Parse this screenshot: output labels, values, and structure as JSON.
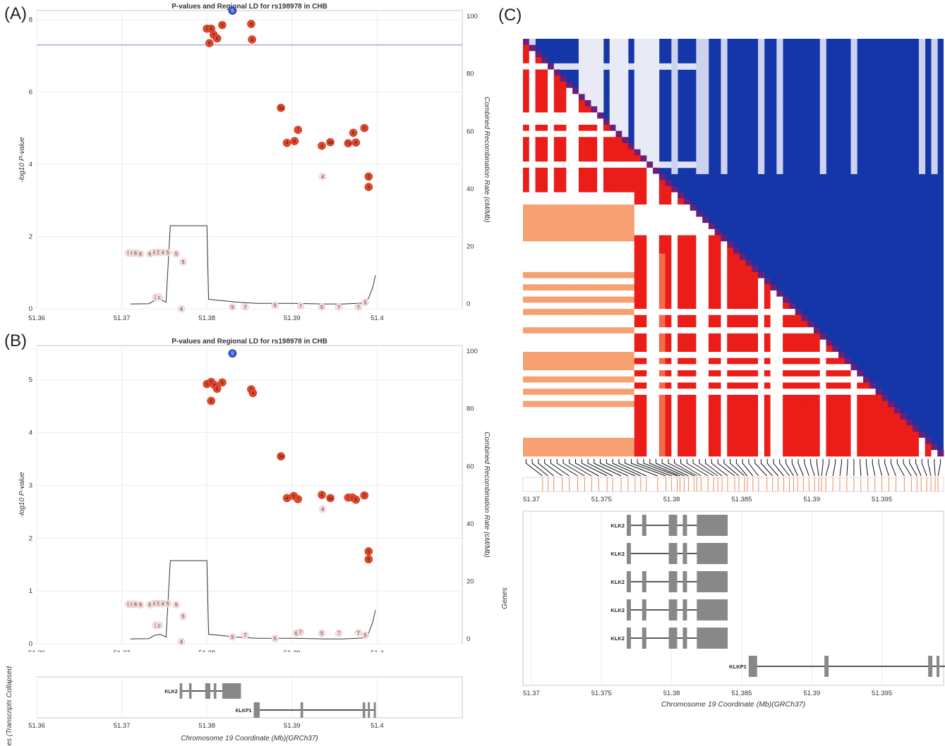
{
  "panel_letters": {
    "a": "(A)",
    "b": "(B)",
    "c": "(C)"
  },
  "chart_data": [
    {
      "panel": "(A)",
      "type": "scatter",
      "title": "P-values and Regional LD for rs198978 in CHB",
      "ylabel": "-log10 P-value",
      "y2label": "Combined Recombination Rate (cM/Mb)",
      "xlim": [
        51.36,
        51.41
      ],
      "ylim": [
        0,
        8.25
      ],
      "y2lim": [
        -1.7,
        102
      ],
      "xticks": [
        "51.36",
        "51.37",
        "51.38",
        "51.39",
        "51.4"
      ],
      "yticks": [
        "0",
        "2",
        "4",
        "6",
        "8"
      ],
      "y2ticks": [
        "0",
        "20",
        "40",
        "60",
        "80",
        "100"
      ],
      "threshold": 7.3,
      "lead": {
        "x": 51.383,
        "y": 8.25,
        "label": "5"
      },
      "red_points": [
        {
          "x": 51.38,
          "y": 7.75,
          "label": "5"
        },
        {
          "x": 51.3805,
          "y": 7.75,
          "label": "6"
        },
        {
          "x": 51.3818,
          "y": 7.85,
          "label": "5"
        },
        {
          "x": 51.3808,
          "y": 7.58,
          "label": "5"
        },
        {
          "x": 51.3812,
          "y": 7.48,
          "label": "6"
        },
        {
          "x": 51.3803,
          "y": 7.35,
          "label": "6"
        },
        {
          "x": 51.3852,
          "y": 7.88,
          "label": "6"
        },
        {
          "x": 51.3853,
          "y": 7.45,
          "label": "4"
        },
        {
          "x": 51.3887,
          "y": 5.56,
          "label": "3a"
        },
        {
          "x": 51.3907,
          "y": 4.95,
          "label": "7"
        },
        {
          "x": 51.3894,
          "y": 4.59,
          "label": "4"
        },
        {
          "x": 51.3903,
          "y": 4.64,
          "label": "6"
        },
        {
          "x": 51.3935,
          "y": 4.51,
          "label": "4"
        },
        {
          "x": 51.3945,
          "y": 4.61,
          "label": "3a"
        },
        {
          "x": 51.3966,
          "y": 4.58,
          "label": "7a"
        },
        {
          "x": 51.3972,
          "y": 4.87,
          "label": "6"
        },
        {
          "x": 51.3975,
          "y": 4.6,
          "label": "6"
        },
        {
          "x": 51.3985,
          "y": 5.0,
          "label": "5"
        },
        {
          "x": 51.399,
          "y": 3.66,
          "label": "5"
        },
        {
          "x": 51.399,
          "y": 3.37,
          "label": "6"
        }
      ],
      "light_points": [
        {
          "x": 51.3708,
          "y": 1.54,
          "label": "5"
        },
        {
          "x": 51.3712,
          "y": 1.54,
          "label": "6"
        },
        {
          "x": 51.3716,
          "y": 1.54,
          "label": "6"
        },
        {
          "x": 51.3722,
          "y": 1.52,
          "label": "6"
        },
        {
          "x": 51.3733,
          "y": 1.52,
          "label": "6"
        },
        {
          "x": 51.3738,
          "y": 1.56,
          "label": "4"
        },
        {
          "x": 51.3743,
          "y": 1.56,
          "label": "5"
        },
        {
          "x": 51.3748,
          "y": 1.56,
          "label": "4"
        },
        {
          "x": 51.3754,
          "y": 1.56,
          "label": "5"
        },
        {
          "x": 51.3764,
          "y": 1.52,
          "label": "5"
        },
        {
          "x": 51.3772,
          "y": 1.3,
          "label": "5"
        },
        {
          "x": 51.3936,
          "y": 3.66,
          "label": "4"
        },
        {
          "x": 51.374,
          "y": 0.32,
          "label": "2"
        },
        {
          "x": 51.3744,
          "y": 0.32,
          "label": "c"
        },
        {
          "x": 51.377,
          "y": 0.0,
          "label": "4"
        },
        {
          "x": 51.383,
          "y": 0.05,
          "label": "5"
        },
        {
          "x": 51.3845,
          "y": 0.05,
          "label": "7"
        },
        {
          "x": 51.388,
          "y": 0.1,
          "label": "5"
        },
        {
          "x": 51.391,
          "y": 0.08,
          "label": "7"
        },
        {
          "x": 51.3935,
          "y": 0.05,
          "label": "5"
        },
        {
          "x": 51.3955,
          "y": 0.05,
          "label": "7"
        },
        {
          "x": 51.3978,
          "y": 0.05,
          "label": "7"
        },
        {
          "x": 51.3986,
          "y": 0.18,
          "label": "5"
        }
      ],
      "recomb_x": [
        51.371,
        51.3732,
        51.3738,
        51.3745,
        51.3752,
        51.3757,
        51.38,
        51.3802,
        51.384,
        51.386,
        51.39,
        51.394,
        51.396,
        51.3985,
        51.399,
        51.3995,
        51.3998
      ],
      "recomb_y": [
        0,
        0.1,
        1.2,
        1.6,
        0.6,
        27.2,
        27.2,
        1.6,
        0.5,
        0.2,
        0.2,
        0,
        0,
        0.3,
        2,
        6,
        10
      ]
    },
    {
      "panel": "(B)",
      "type": "scatter",
      "title": "P-values and Regional LD for rs198978 in CHB",
      "ylabel": "-log10 P-value",
      "y2label": "Combined Recombination Rate (cM/Mb)",
      "xlim": [
        51.36,
        51.41
      ],
      "ylim": [
        0,
        5.65
      ],
      "y2lim": [
        -1.7,
        102
      ],
      "xticks": [
        "51.36",
        "51.37",
        "51.38",
        "51.39",
        "51.4"
      ],
      "yticks": [
        "0",
        "1",
        "2",
        "3",
        "4",
        "5"
      ],
      "y2ticks": [
        "0",
        "20",
        "40",
        "60",
        "80",
        "100"
      ],
      "lead": {
        "x": 51.383,
        "y": 5.5,
        "label": "5"
      },
      "red_points": [
        {
          "x": 51.38,
          "y": 4.92,
          "label": "5"
        },
        {
          "x": 51.3805,
          "y": 4.96,
          "label": "6"
        },
        {
          "x": 51.3809,
          "y": 4.9,
          "label": "6"
        },
        {
          "x": 51.3812,
          "y": 4.83,
          "label": "6"
        },
        {
          "x": 51.3818,
          "y": 4.95,
          "label": "5"
        },
        {
          "x": 51.3805,
          "y": 4.6,
          "label": "6"
        },
        {
          "x": 51.3852,
          "y": 4.82,
          "label": "6"
        },
        {
          "x": 51.3854,
          "y": 4.75,
          "label": "4"
        },
        {
          "x": 51.3887,
          "y": 3.55,
          "label": "3a"
        },
        {
          "x": 51.3894,
          "y": 2.76,
          "label": "4"
        },
        {
          "x": 51.3902,
          "y": 2.8,
          "label": "6"
        },
        {
          "x": 51.3907,
          "y": 2.74,
          "label": "7"
        },
        {
          "x": 51.3935,
          "y": 2.82,
          "label": "4"
        },
        {
          "x": 51.3945,
          "y": 2.76,
          "label": "3a"
        },
        {
          "x": 51.3966,
          "y": 2.77,
          "label": "7"
        },
        {
          "x": 51.3971,
          "y": 2.77,
          "label": "a"
        },
        {
          "x": 51.3975,
          "y": 2.73,
          "label": "6"
        },
        {
          "x": 51.3985,
          "y": 2.81,
          "label": "5"
        },
        {
          "x": 51.399,
          "y": 1.75,
          "label": "5"
        },
        {
          "x": 51.399,
          "y": 1.6,
          "label": "6"
        }
      ],
      "light_points": [
        {
          "x": 51.3708,
          "y": 0.75,
          "label": "5"
        },
        {
          "x": 51.3712,
          "y": 0.75,
          "label": "6"
        },
        {
          "x": 51.3716,
          "y": 0.75,
          "label": "6"
        },
        {
          "x": 51.3722,
          "y": 0.74,
          "label": "6"
        },
        {
          "x": 51.3733,
          "y": 0.74,
          "label": "6"
        },
        {
          "x": 51.3738,
          "y": 0.76,
          "label": "4"
        },
        {
          "x": 51.3743,
          "y": 0.76,
          "label": "5"
        },
        {
          "x": 51.3748,
          "y": 0.76,
          "label": "4"
        },
        {
          "x": 51.3754,
          "y": 0.76,
          "label": "5"
        },
        {
          "x": 51.3764,
          "y": 0.74,
          "label": "5"
        },
        {
          "x": 51.3772,
          "y": 0.52,
          "label": "5"
        },
        {
          "x": 51.3936,
          "y": 2.55,
          "label": "4"
        },
        {
          "x": 51.374,
          "y": 0.35,
          "label": "2"
        },
        {
          "x": 51.3744,
          "y": 0.35,
          "label": "c"
        },
        {
          "x": 51.377,
          "y": 0.04,
          "label": "4"
        },
        {
          "x": 51.383,
          "y": 0.13,
          "label": "5"
        },
        {
          "x": 51.3845,
          "y": 0.16,
          "label": "7"
        },
        {
          "x": 51.388,
          "y": 0.1,
          "label": "5"
        },
        {
          "x": 51.3905,
          "y": 0.2,
          "label": "6"
        },
        {
          "x": 51.391,
          "y": 0.22,
          "label": "7"
        },
        {
          "x": 51.3935,
          "y": 0.2,
          "label": "5"
        },
        {
          "x": 51.3955,
          "y": 0.2,
          "label": "7"
        },
        {
          "x": 51.3978,
          "y": 0.21,
          "label": "7"
        },
        {
          "x": 51.3986,
          "y": 0.16,
          "label": "5"
        }
      ],
      "recomb_x": [
        51.371,
        51.3732,
        51.3738,
        51.3745,
        51.3752,
        51.3757,
        51.38,
        51.3802,
        51.384,
        51.386,
        51.39,
        51.394,
        51.396,
        51.3985,
        51.399,
        51.3995,
        51.3998
      ],
      "recomb_y": [
        0,
        0.1,
        1.2,
        1.6,
        0.6,
        27.2,
        27.2,
        1.6,
        0.5,
        0.2,
        0.2,
        0,
        0,
        0.3,
        2,
        6,
        10
      ]
    },
    {
      "panel": "(B)-genes",
      "type": "gene-track",
      "ylabel": "Genes (Transcripts Collapsed)",
      "xlabel": "Chromosome 19 Coordinate (Mb)(GRCh37)",
      "xlim": [
        51.36,
        51.41
      ],
      "xticks": [
        "51.36",
        "51.37",
        "51.38",
        "51.39",
        "51.4"
      ],
      "genes": [
        {
          "name": "KLK2",
          "start": 51.3768,
          "end": 51.384,
          "row": 0,
          "exons": [
            [
              51.3768,
              51.3771
            ],
            [
              51.3779,
              51.3782
            ],
            [
              51.3798,
              51.3804
            ],
            [
              51.3808,
              51.3811
            ],
            [
              51.3818,
              51.384
            ]
          ]
        },
        {
          "name": "KLKP1",
          "start": 51.3855,
          "end": 51.3998,
          "row": 1,
          "exons": [
            [
              51.3855,
              51.3862
            ],
            [
              51.391,
              51.3913
            ],
            [
              51.3983,
              51.3986
            ],
            [
              51.3989,
              51.3991
            ],
            [
              51.3996,
              51.3998
            ]
          ]
        }
      ]
    },
    {
      "panel": "(C)",
      "type": "heatmap",
      "xlabel": "Chromosome 19 Coordinate (Mb)(GRCh37)",
      "ylabel": "Genes",
      "xlim": [
        51.3694,
        51.3994
      ],
      "xticks": [
        "51.37",
        "51.375",
        "51.38",
        "51.385",
        "51.39",
        "51.395"
      ],
      "upper_color": "#1436a8",
      "lower_color": "#ea1d18",
      "diagonal_color": "#6a1f7a",
      "snp_positions": [
        51.3708,
        51.3712,
        51.3716,
        51.3722,
        51.3727,
        51.3733,
        51.3738,
        51.3743,
        51.3748,
        51.3754,
        51.3758,
        51.3764,
        51.3769,
        51.3774,
        51.3778,
        51.3782,
        51.379,
        51.3796,
        51.38,
        51.3804,
        51.3806,
        51.3809,
        51.3812,
        51.3816,
        51.3818,
        51.3821,
        51.3826,
        51.383,
        51.3833,
        51.3836,
        51.384,
        51.3845,
        51.3848,
        51.3852,
        51.3854,
        51.3858,
        51.3862,
        51.3868,
        51.3872,
        51.3876,
        51.388,
        51.3884,
        51.3887,
        51.389,
        51.3894,
        51.3898,
        51.3902,
        51.3905,
        51.3907,
        51.391,
        51.3915,
        51.392,
        51.3925,
        51.393,
        51.3935,
        51.394,
        51.3945,
        51.395,
        51.3955,
        51.396,
        51.3966,
        51.3971,
        51.3975,
        51.3978,
        51.3982,
        51.3985,
        51.3988,
        51.399
      ],
      "genes": [
        {
          "name": "KLK2",
          "start": 51.3768,
          "end": 51.384,
          "exons": [
            [
              51.3768,
              51.3771
            ],
            [
              51.3779,
              51.3782
            ],
            [
              51.3798,
              51.3804
            ],
            [
              51.3808,
              51.3811
            ],
            [
              51.3818,
              51.384
            ]
          ]
        },
        {
          "name": "KLK2",
          "start": 51.3768,
          "end": 51.384,
          "exons": [
            [
              51.3768,
              51.3771
            ],
            [
              51.3798,
              51.3804
            ],
            [
              51.3808,
              51.3811
            ],
            [
              51.3818,
              51.384
            ]
          ]
        },
        {
          "name": "KLK2",
          "start": 51.3768,
          "end": 51.384,
          "exons": [
            [
              51.3768,
              51.3771
            ],
            [
              51.3779,
              51.3782
            ],
            [
              51.3798,
              51.3804
            ],
            [
              51.3808,
              51.3811
            ],
            [
              51.3818,
              51.384
            ]
          ]
        },
        {
          "name": "KLK2",
          "start": 51.3768,
          "end": 51.384,
          "exons": [
            [
              51.3768,
              51.3771
            ],
            [
              51.3779,
              51.3782
            ],
            [
              51.3798,
              51.3804
            ],
            [
              51.3808,
              51.3811
            ],
            [
              51.3818,
              51.384
            ]
          ]
        },
        {
          "name": "KLK2",
          "start": 51.3768,
          "end": 51.384,
          "exons": [
            [
              51.3768,
              51.3771
            ],
            [
              51.3779,
              51.3782
            ],
            [
              51.3798,
              51.3804
            ],
            [
              51.3808,
              51.3811
            ],
            [
              51.3818,
              51.384
            ]
          ]
        },
        {
          "name": "KLKP1",
          "start": 51.3855,
          "end": 51.3998,
          "exons": [
            [
              51.3855,
              51.3861
            ],
            [
              51.3909,
              51.3912
            ],
            [
              51.3983,
              51.3986
            ],
            [
              51.3989,
              51.3991
            ],
            [
              51.3996,
              51.3998
            ]
          ]
        }
      ]
    }
  ]
}
